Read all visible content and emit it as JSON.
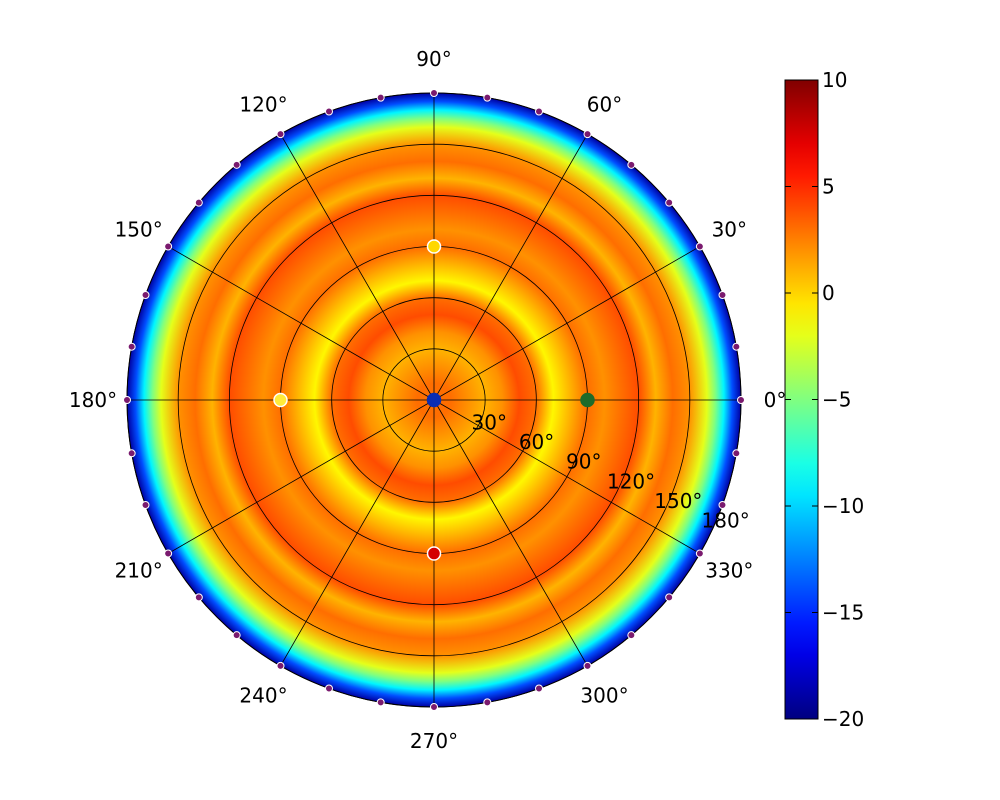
{
  "chart_data": {
    "type": "heatmap",
    "projection": "polar",
    "colormap": "jet",
    "title": "",
    "grid": true,
    "angle_ticks": [
      {
        "deg": 0,
        "label": "0°"
      },
      {
        "deg": 30,
        "label": "30°"
      },
      {
        "deg": 60,
        "label": "60°"
      },
      {
        "deg": 90,
        "label": "90°"
      },
      {
        "deg": 120,
        "label": "120°"
      },
      {
        "deg": 150,
        "label": "150°"
      },
      {
        "deg": 180,
        "label": "180°"
      },
      {
        "deg": 210,
        "label": "210°"
      },
      {
        "deg": 240,
        "label": "240°"
      },
      {
        "deg": 270,
        "label": "270°"
      },
      {
        "deg": 300,
        "label": "300°"
      },
      {
        "deg": 330,
        "label": "330°"
      }
    ],
    "radial_ticks": [
      {
        "value": 30,
        "label": "30°"
      },
      {
        "value": 60,
        "label": "60°"
      },
      {
        "value": 90,
        "label": "90°"
      },
      {
        "value": 120,
        "label": "120°"
      },
      {
        "value": 150,
        "label": "150°"
      },
      {
        "value": 180,
        "label": "180°"
      }
    ],
    "rlim": [
      0,
      180
    ],
    "radial_profile": {
      "r": [
        0,
        10,
        20,
        30,
        40,
        50,
        60,
        70,
        80,
        90,
        100,
        110,
        120,
        130,
        140,
        150,
        160,
        165,
        170,
        175,
        180
      ],
      "value": [
        3,
        3,
        2,
        1,
        2,
        4,
        3,
        -1,
        1,
        3,
        2,
        3,
        4,
        1,
        3,
        2,
        -2,
        -5,
        -9,
        -14,
        -19
      ]
    },
    "colorbar": {
      "range": [
        -20,
        10
      ],
      "ticks": [
        {
          "value": 10,
          "label": "10"
        },
        {
          "value": 5,
          "label": "5"
        },
        {
          "value": 0,
          "label": "0"
        },
        {
          "value": -5,
          "label": "−5"
        },
        {
          "value": -10,
          "label": "−10"
        },
        {
          "value": -15,
          "label": "−15"
        },
        {
          "value": -20,
          "label": "−20"
        }
      ]
    },
    "markers": [
      {
        "angle": 0,
        "r": 0,
        "color": "#0a2db4",
        "edge": "#0a2db4"
      },
      {
        "angle": 0,
        "r": 90,
        "color": "#1e6b2a",
        "edge": "#1e6b2a"
      },
      {
        "angle": 90,
        "r": 90,
        "color": "#ffd700",
        "edge": "#ffffff"
      },
      {
        "angle": 180,
        "r": 90,
        "color": "#ffeb3b",
        "edge": "#ffffff"
      },
      {
        "angle": 270,
        "r": 90,
        "color": "#d40000",
        "edge": "#ffffff"
      }
    ],
    "rim_markers": {
      "r": 180,
      "angle_step_deg": 10,
      "color": "#7a1a6e"
    }
  }
}
